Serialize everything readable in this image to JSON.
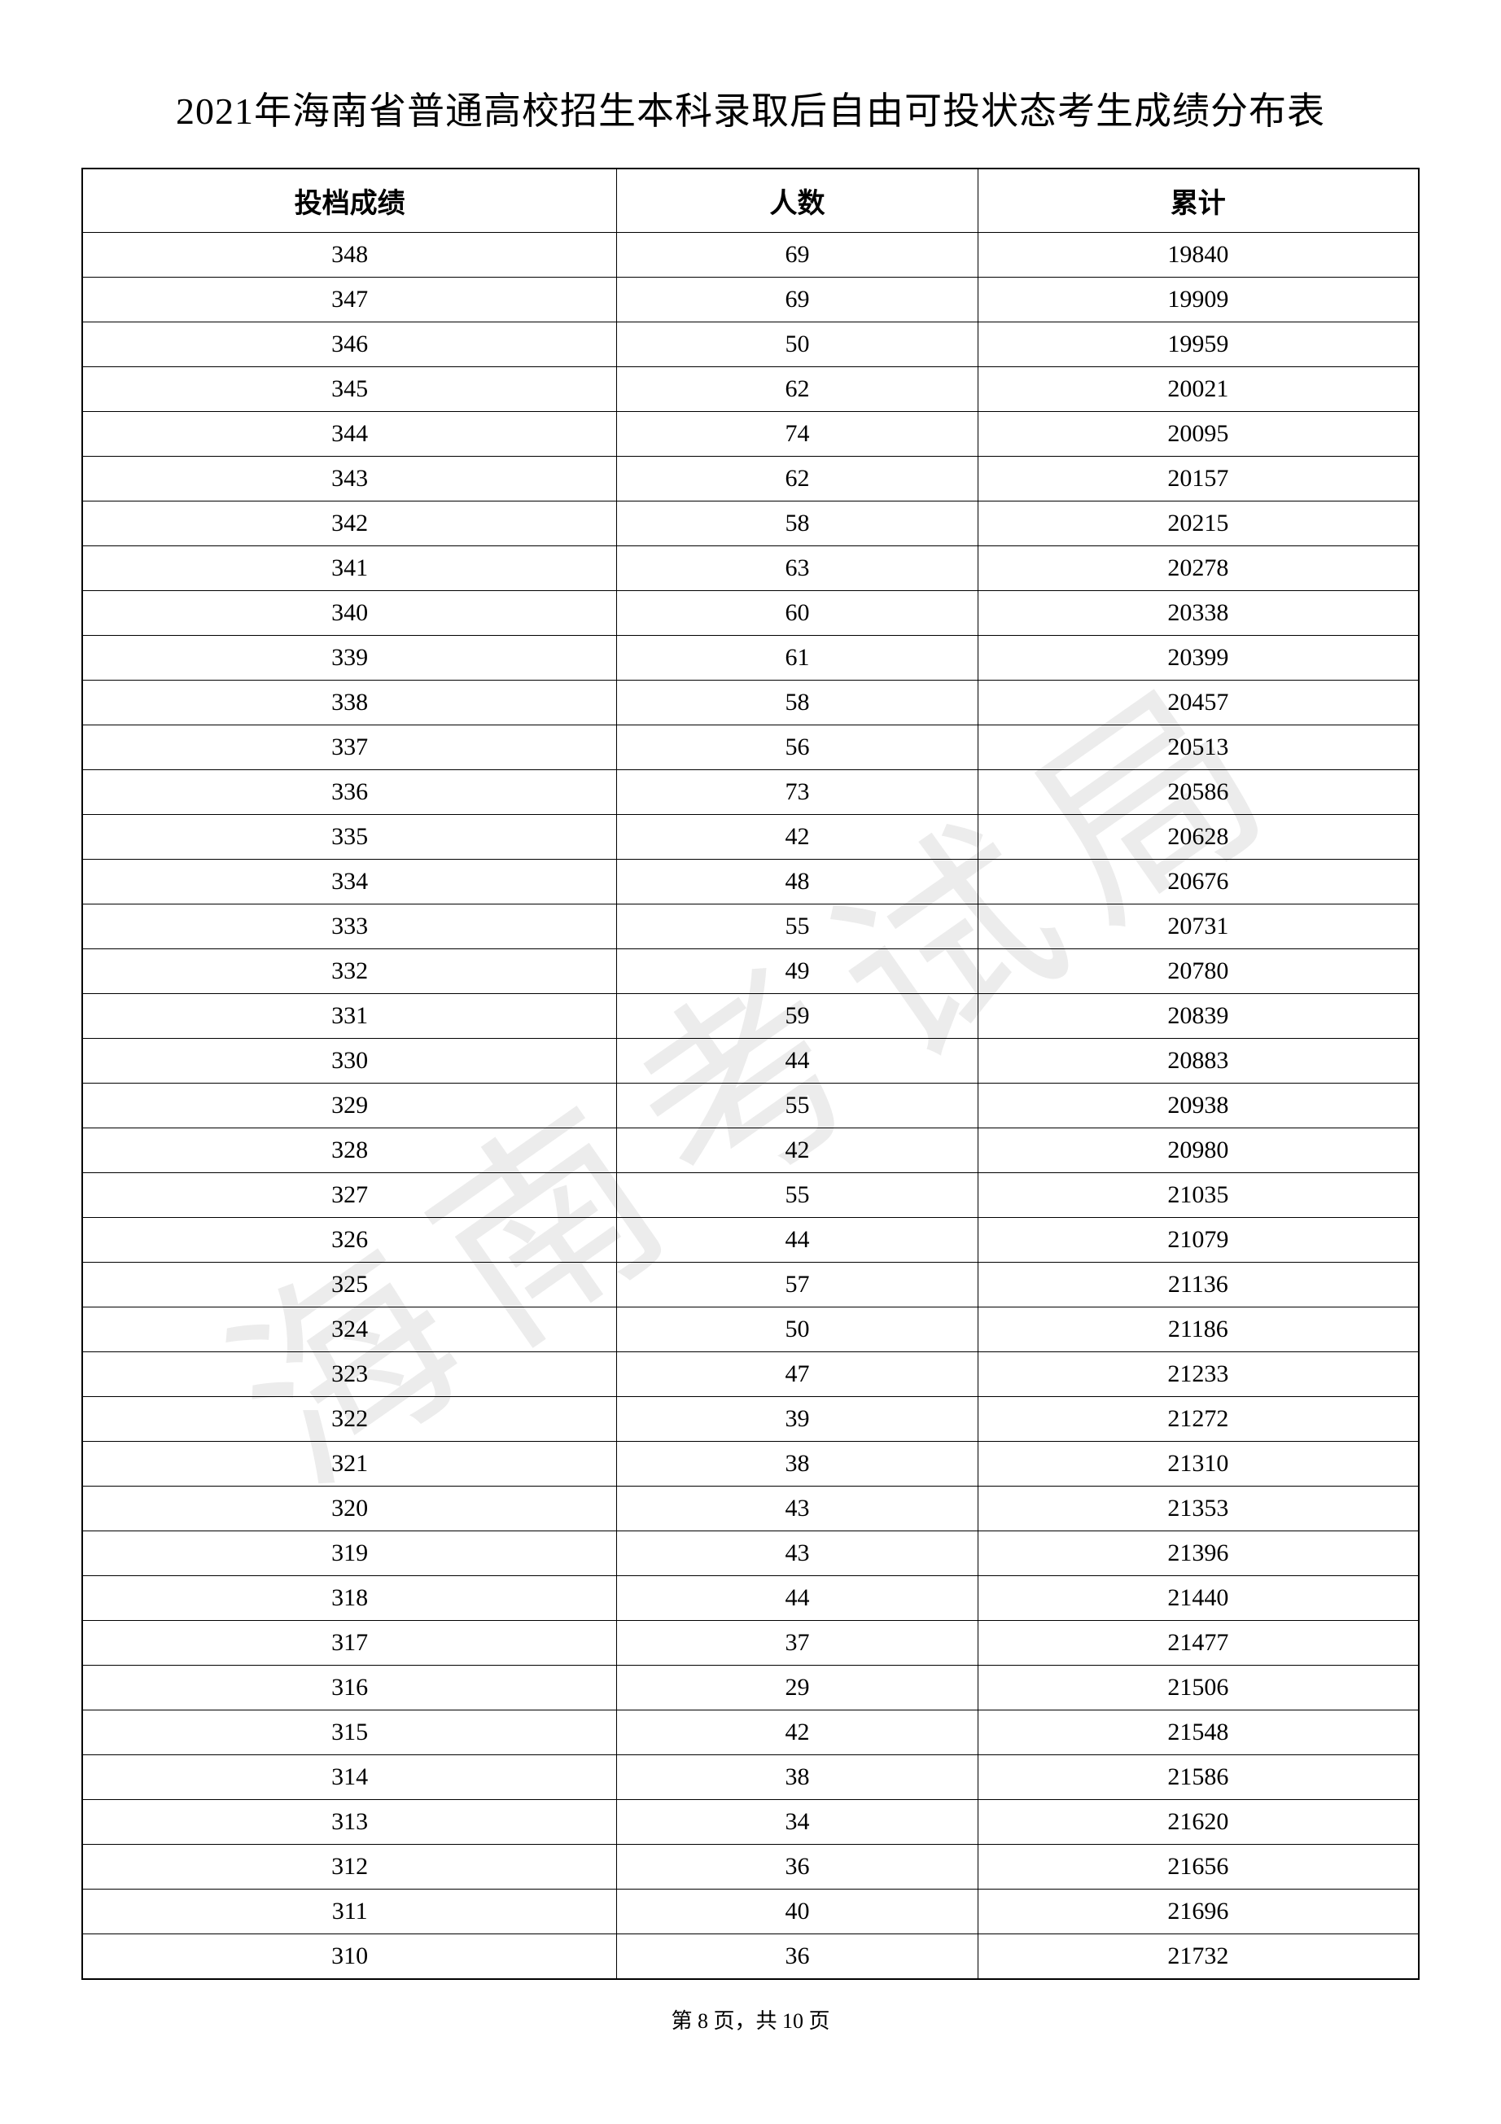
{
  "title": "2021年海南省普通高校招生本科录取后自由可投状态考生成绩分布表",
  "watermark_text": "海南考试局",
  "table": {
    "type": "table",
    "columns": [
      {
        "key": "score",
        "label": "投档成绩",
        "width": "40%",
        "align": "center"
      },
      {
        "key": "count",
        "label": "人数",
        "width": "27%",
        "align": "center"
      },
      {
        "key": "total",
        "label": "累计",
        "width": "33%",
        "align": "center"
      }
    ],
    "header_fontsize": 34,
    "cell_fontsize": 30,
    "border_color": "#000000",
    "background_color": "#ffffff",
    "text_color": "#000000",
    "rows": [
      [
        "348",
        "69",
        "19840"
      ],
      [
        "347",
        "69",
        "19909"
      ],
      [
        "346",
        "50",
        "19959"
      ],
      [
        "345",
        "62",
        "20021"
      ],
      [
        "344",
        "74",
        "20095"
      ],
      [
        "343",
        "62",
        "20157"
      ],
      [
        "342",
        "58",
        "20215"
      ],
      [
        "341",
        "63",
        "20278"
      ],
      [
        "340",
        "60",
        "20338"
      ],
      [
        "339",
        "61",
        "20399"
      ],
      [
        "338",
        "58",
        "20457"
      ],
      [
        "337",
        "56",
        "20513"
      ],
      [
        "336",
        "73",
        "20586"
      ],
      [
        "335",
        "42",
        "20628"
      ],
      [
        "334",
        "48",
        "20676"
      ],
      [
        "333",
        "55",
        "20731"
      ],
      [
        "332",
        "49",
        "20780"
      ],
      [
        "331",
        "59",
        "20839"
      ],
      [
        "330",
        "44",
        "20883"
      ],
      [
        "329",
        "55",
        "20938"
      ],
      [
        "328",
        "42",
        "20980"
      ],
      [
        "327",
        "55",
        "21035"
      ],
      [
        "326",
        "44",
        "21079"
      ],
      [
        "325",
        "57",
        "21136"
      ],
      [
        "324",
        "50",
        "21186"
      ],
      [
        "323",
        "47",
        "21233"
      ],
      [
        "322",
        "39",
        "21272"
      ],
      [
        "321",
        "38",
        "21310"
      ],
      [
        "320",
        "43",
        "21353"
      ],
      [
        "319",
        "43",
        "21396"
      ],
      [
        "318",
        "44",
        "21440"
      ],
      [
        "317",
        "37",
        "21477"
      ],
      [
        "316",
        "29",
        "21506"
      ],
      [
        "315",
        "42",
        "21548"
      ],
      [
        "314",
        "38",
        "21586"
      ],
      [
        "313",
        "34",
        "21620"
      ],
      [
        "312",
        "36",
        "21656"
      ],
      [
        "311",
        "40",
        "21696"
      ],
      [
        "310",
        "36",
        "21732"
      ]
    ]
  },
  "footer": {
    "page_current": "8",
    "page_total": "10",
    "prefix": "第 ",
    "middle": " 页，共 ",
    "suffix": " 页"
  }
}
